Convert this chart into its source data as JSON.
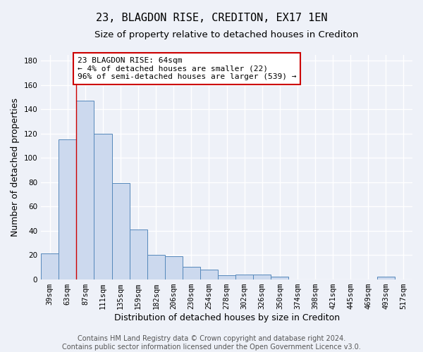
{
  "title1": "23, BLAGDON RISE, CREDITON, EX17 1EN",
  "title2": "Size of property relative to detached houses in Crediton",
  "xlabel": "Distribution of detached houses by size in Crediton",
  "ylabel": "Number of detached properties",
  "categories": [
    "39sqm",
    "63sqm",
    "87sqm",
    "111sqm",
    "135sqm",
    "159sqm",
    "182sqm",
    "206sqm",
    "230sqm",
    "254sqm",
    "278sqm",
    "302sqm",
    "326sqm",
    "350sqm",
    "374sqm",
    "398sqm",
    "421sqm",
    "445sqm",
    "469sqm",
    "493sqm",
    "517sqm"
  ],
  "values": [
    21,
    115,
    147,
    120,
    79,
    41,
    20,
    19,
    10,
    8,
    3,
    4,
    4,
    2,
    0,
    0,
    0,
    0,
    0,
    2,
    0
  ],
  "bar_color": "#ccd9ee",
  "bar_edge_color": "#5588bb",
  "vline_x": 1.5,
  "vline_color": "#cc0000",
  "annotation_line1": "23 BLAGDON RISE: 64sqm",
  "annotation_line2": "← 4% of detached houses are smaller (22)",
  "annotation_line3": "96% of semi-detached houses are larger (539) →",
  "annotation_box_color": "#ffffff",
  "annotation_box_edge": "#cc0000",
  "ylim": [
    0,
    185
  ],
  "yticks": [
    0,
    20,
    40,
    60,
    80,
    100,
    120,
    140,
    160,
    180
  ],
  "footer": "Contains HM Land Registry data © Crown copyright and database right 2024.\nContains public sector information licensed under the Open Government Licence v3.0.",
  "bg_color": "#eef1f8",
  "grid_color": "#ffffff",
  "title1_fontsize": 11,
  "title2_fontsize": 9.5,
  "xlabel_fontsize": 9,
  "ylabel_fontsize": 9,
  "annot_fontsize": 8,
  "tick_fontsize": 7.5,
  "footer_fontsize": 7
}
